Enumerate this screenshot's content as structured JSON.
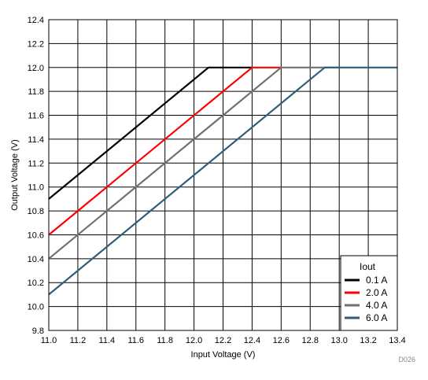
{
  "chart_data": {
    "type": "line",
    "xlabel": "Input Voltage (V)",
    "ylabel": "Output Voltage (V)",
    "xlim": [
      11.0,
      13.4
    ],
    "ylim": [
      9.8,
      12.4
    ],
    "x_ticks": [
      "11.0",
      "11.2",
      "11.4",
      "11.6",
      "11.8",
      "12.0",
      "12.2",
      "12.4",
      "12.6",
      "12.8",
      "13.0",
      "13.2",
      "13.4"
    ],
    "y_ticks": [
      "9.8",
      "10.0",
      "10.2",
      "10.4",
      "10.6",
      "10.8",
      "11.0",
      "11.2",
      "11.4",
      "11.6",
      "11.8",
      "12.0",
      "12.2",
      "12.4"
    ],
    "grid": true,
    "legend": {
      "title": "Iout",
      "placement": "bottom-right"
    },
    "series": [
      {
        "name": "0.1 A",
        "color": "#000000",
        "points": [
          [
            11.0,
            10.9
          ],
          [
            12.1,
            12.0
          ],
          [
            12.4,
            12.0
          ]
        ]
      },
      {
        "name": "2.0 A",
        "color": "#ff0000",
        "points": [
          [
            11.0,
            10.6
          ],
          [
            12.4,
            12.0
          ],
          [
            12.6,
            12.0
          ]
        ]
      },
      {
        "name": "4.0 A",
        "color": "#707070",
        "points": [
          [
            11.0,
            10.4
          ],
          [
            12.6,
            12.0
          ],
          [
            13.0,
            12.0
          ]
        ]
      },
      {
        "name": "6.0 A",
        "color": "#2f5f78",
        "points": [
          [
            11.0,
            10.1
          ],
          [
            12.9,
            12.0
          ],
          [
            13.4,
            12.0
          ]
        ]
      }
    ]
  },
  "figure_id": "D026"
}
